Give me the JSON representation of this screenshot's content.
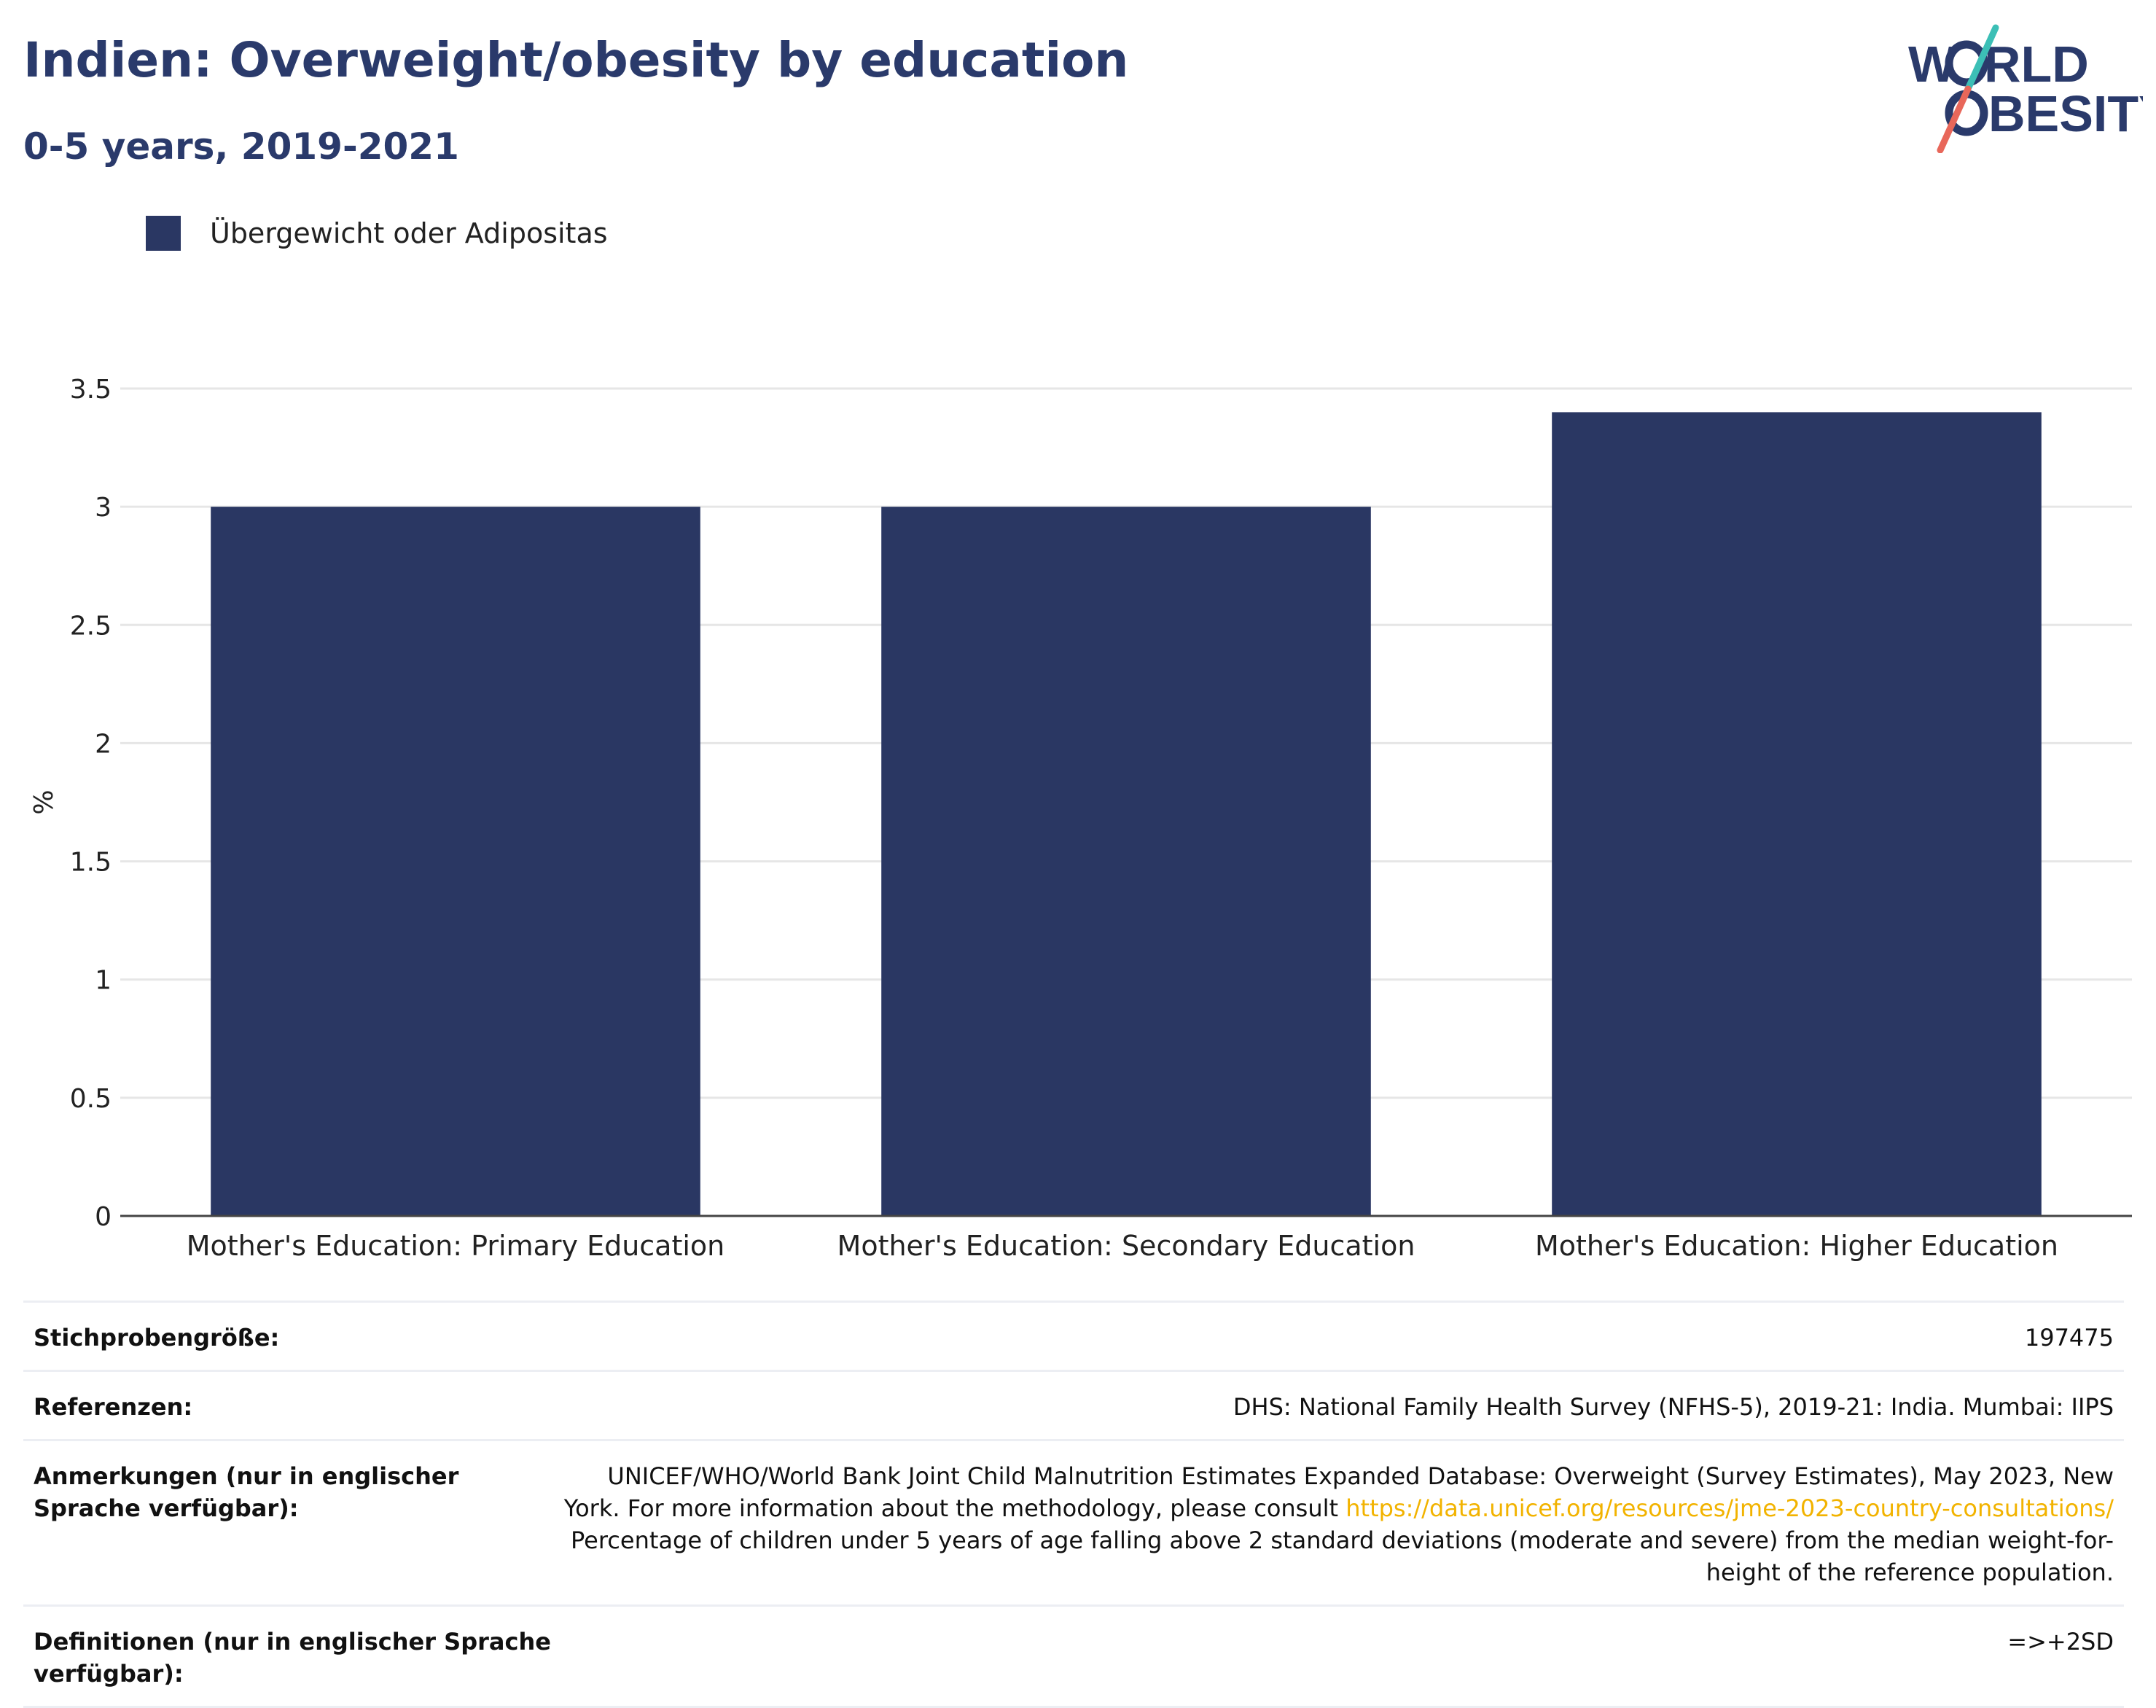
{
  "header": {
    "title": "Indien: Overweight/obesity by education",
    "subtitle": "0-5 years, 2019-2021"
  },
  "logo": {
    "line1": "W",
    "line1b": "RLD",
    "line2": "BESITY",
    "colors": {
      "text": "#2a3a6b",
      "slash_top": "#3cbfb6",
      "slash_bottom": "#e8675a"
    }
  },
  "colors": {
    "bar": "#2a3763",
    "grid": "#e6e6e6",
    "axis": "#444444",
    "link": "#f2b300"
  },
  "chart_data": {
    "type": "bar",
    "categories": [
      "Mother's Education: Primary Education",
      "Mother's Education: Secondary Education",
      "Mother's Education: Higher Education"
    ],
    "series": [
      {
        "name": "Übergewicht oder Adipositas",
        "values": [
          3.0,
          3.0,
          3.4
        ]
      }
    ],
    "ylabel": "%",
    "ylim": [
      0,
      3.5
    ],
    "yticks": [
      "0",
      "0.5",
      "1",
      "1.5",
      "2",
      "2.5",
      "3",
      "3.5"
    ],
    "grid": true,
    "legend_position": "top-left"
  },
  "info": {
    "sample_size_label": "Stichprobengröße:",
    "sample_size_value": "197475",
    "references_label": "Referenzen:",
    "references_value": "DHS: National Family Health Survey (NFHS-5), 2019-21: India. Mumbai: IIPS",
    "notes_label": "Anmerkungen (nur in englischer Sprache verfügbar):",
    "notes_text_1": "UNICEF/WHO/World Bank Joint Child Malnutrition Estimates Expanded Database: Overweight (Survey Estimates), May 2023, New York. For more information about the methodology, please consult ",
    "notes_link": "https://data.unicef.org/resources/jme-2023-country-consultations/",
    "notes_text_2": "Percentage of children under 5 years of age falling above 2 standard deviations (moderate and severe) from the median weight-for-height of the reference population.",
    "definitions_label": "Definitionen (nur in englischer Sprache verfügbar):",
    "definitions_value": "=>+2SD"
  }
}
